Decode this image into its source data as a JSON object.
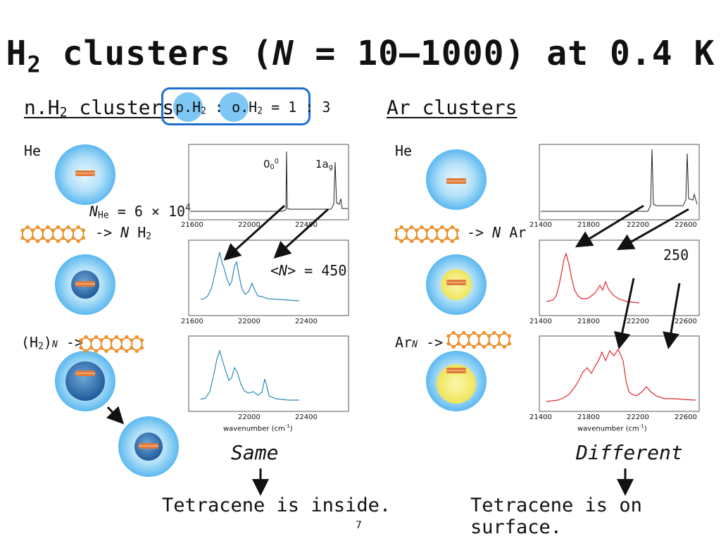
{
  "title": {
    "pre": "H",
    "sub": "2",
    "mid": " clusters (",
    "n": "N",
    "post": " = 10–1000) at 0.4 K"
  },
  "left_header": {
    "pre": "n.H",
    "sub": "2",
    "post": " clusters"
  },
  "ratio": {
    "p": "p.H",
    "psub": "2",
    "colon": " : ",
    "o": "o.H",
    "osub": "2",
    "rest": " = 1 : 3"
  },
  "right_header": "Ar clusters",
  "he_left": "He",
  "he_right": "He",
  "peak_00": {
    "base": "0",
    "sub": "0",
    "sup": "0"
  },
  "peak_1ag": {
    "base": "1a",
    "sub": "g"
  },
  "nhe": {
    "n": "N",
    "sub": "He",
    "mid": " = 6 × 10",
    "sup": "4"
  },
  "arrow_nh2": {
    "pre": "-> ",
    "n": "N",
    "post": " H",
    "sub": "2"
  },
  "arrow_nar": {
    "pre": "-> ",
    "n": "N",
    "post": " Ar"
  },
  "avg_n": {
    "pre": "<",
    "n": "N",
    "post": "> =  450"
  },
  "val_250": "250",
  "h2n": {
    "pre": "(H",
    "sub": "2",
    "mid": ")",
    "n": "N",
    "post": " ->"
  },
  "arn": {
    "pre": "Ar",
    "n": "N",
    "post": " ->"
  },
  "xlabel": "wavenumber (cm",
  "xlabel_sup": "-1",
  "xlabel_end": ")",
  "ticks_left": [
    "21600",
    "22000",
    "22400"
  ],
  "ticks_right": [
    "21400",
    "21800",
    "22200",
    "22600"
  ],
  "same": "Same",
  "different": "Different",
  "inside": "Tetracene is inside.",
  "surface": "Tetracene is on surface.",
  "page_number": "7",
  "colors": {
    "cluster_blue": "#5bb8f0",
    "h2_core": "#2f6eb0",
    "ar_core": "#f4ee7a",
    "spec_blue": "#2a8ab8",
    "spec_red": "#e0262b",
    "ratio_box": "#1f6fd0"
  }
}
